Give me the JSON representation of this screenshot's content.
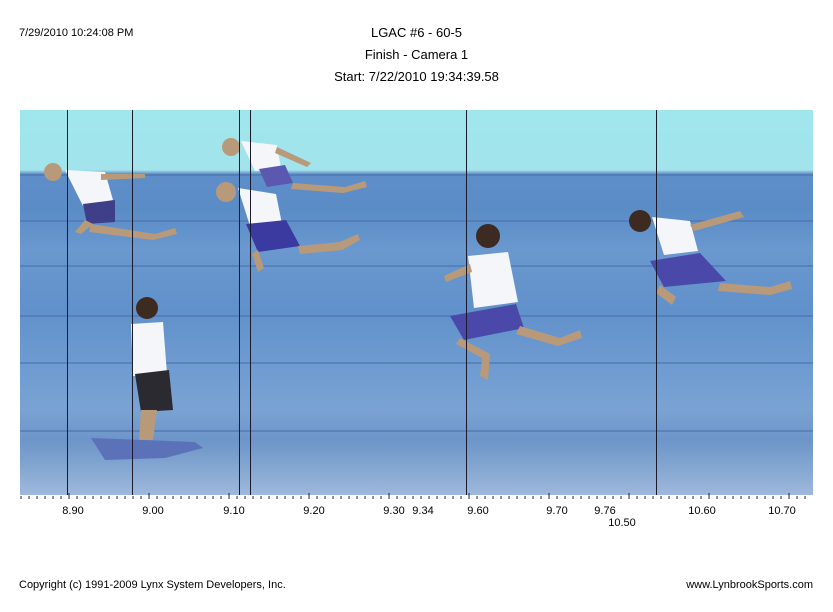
{
  "header": {
    "timestamp": "7/29/2010 10:24:08 PM",
    "title": "LGAC #6 - 60-5",
    "subtitle": "Finish - Camera 1",
    "start": "Start: 7/22/2010 19:34:39.58"
  },
  "time_axis": {
    "labels": [
      "8.90",
      "9.00",
      "9.10",
      "9.20",
      "9.30",
      "9.34",
      "9.60",
      "9.70",
      "9.76",
      "10.50",
      "10.60",
      "10.70"
    ]
  },
  "footer": {
    "copyright": "Copyright (c) 1991-2009 Lynx System Developers, Inc.",
    "website": "www.LynbrookSports.com"
  },
  "colors": {
    "sky": "#9fe7ec",
    "track": "#6191cb",
    "finish_line": "#1a1a2a",
    "jersey": "#ffffff",
    "shorts": "#4a48a8",
    "skin": "#b89a7a"
  }
}
